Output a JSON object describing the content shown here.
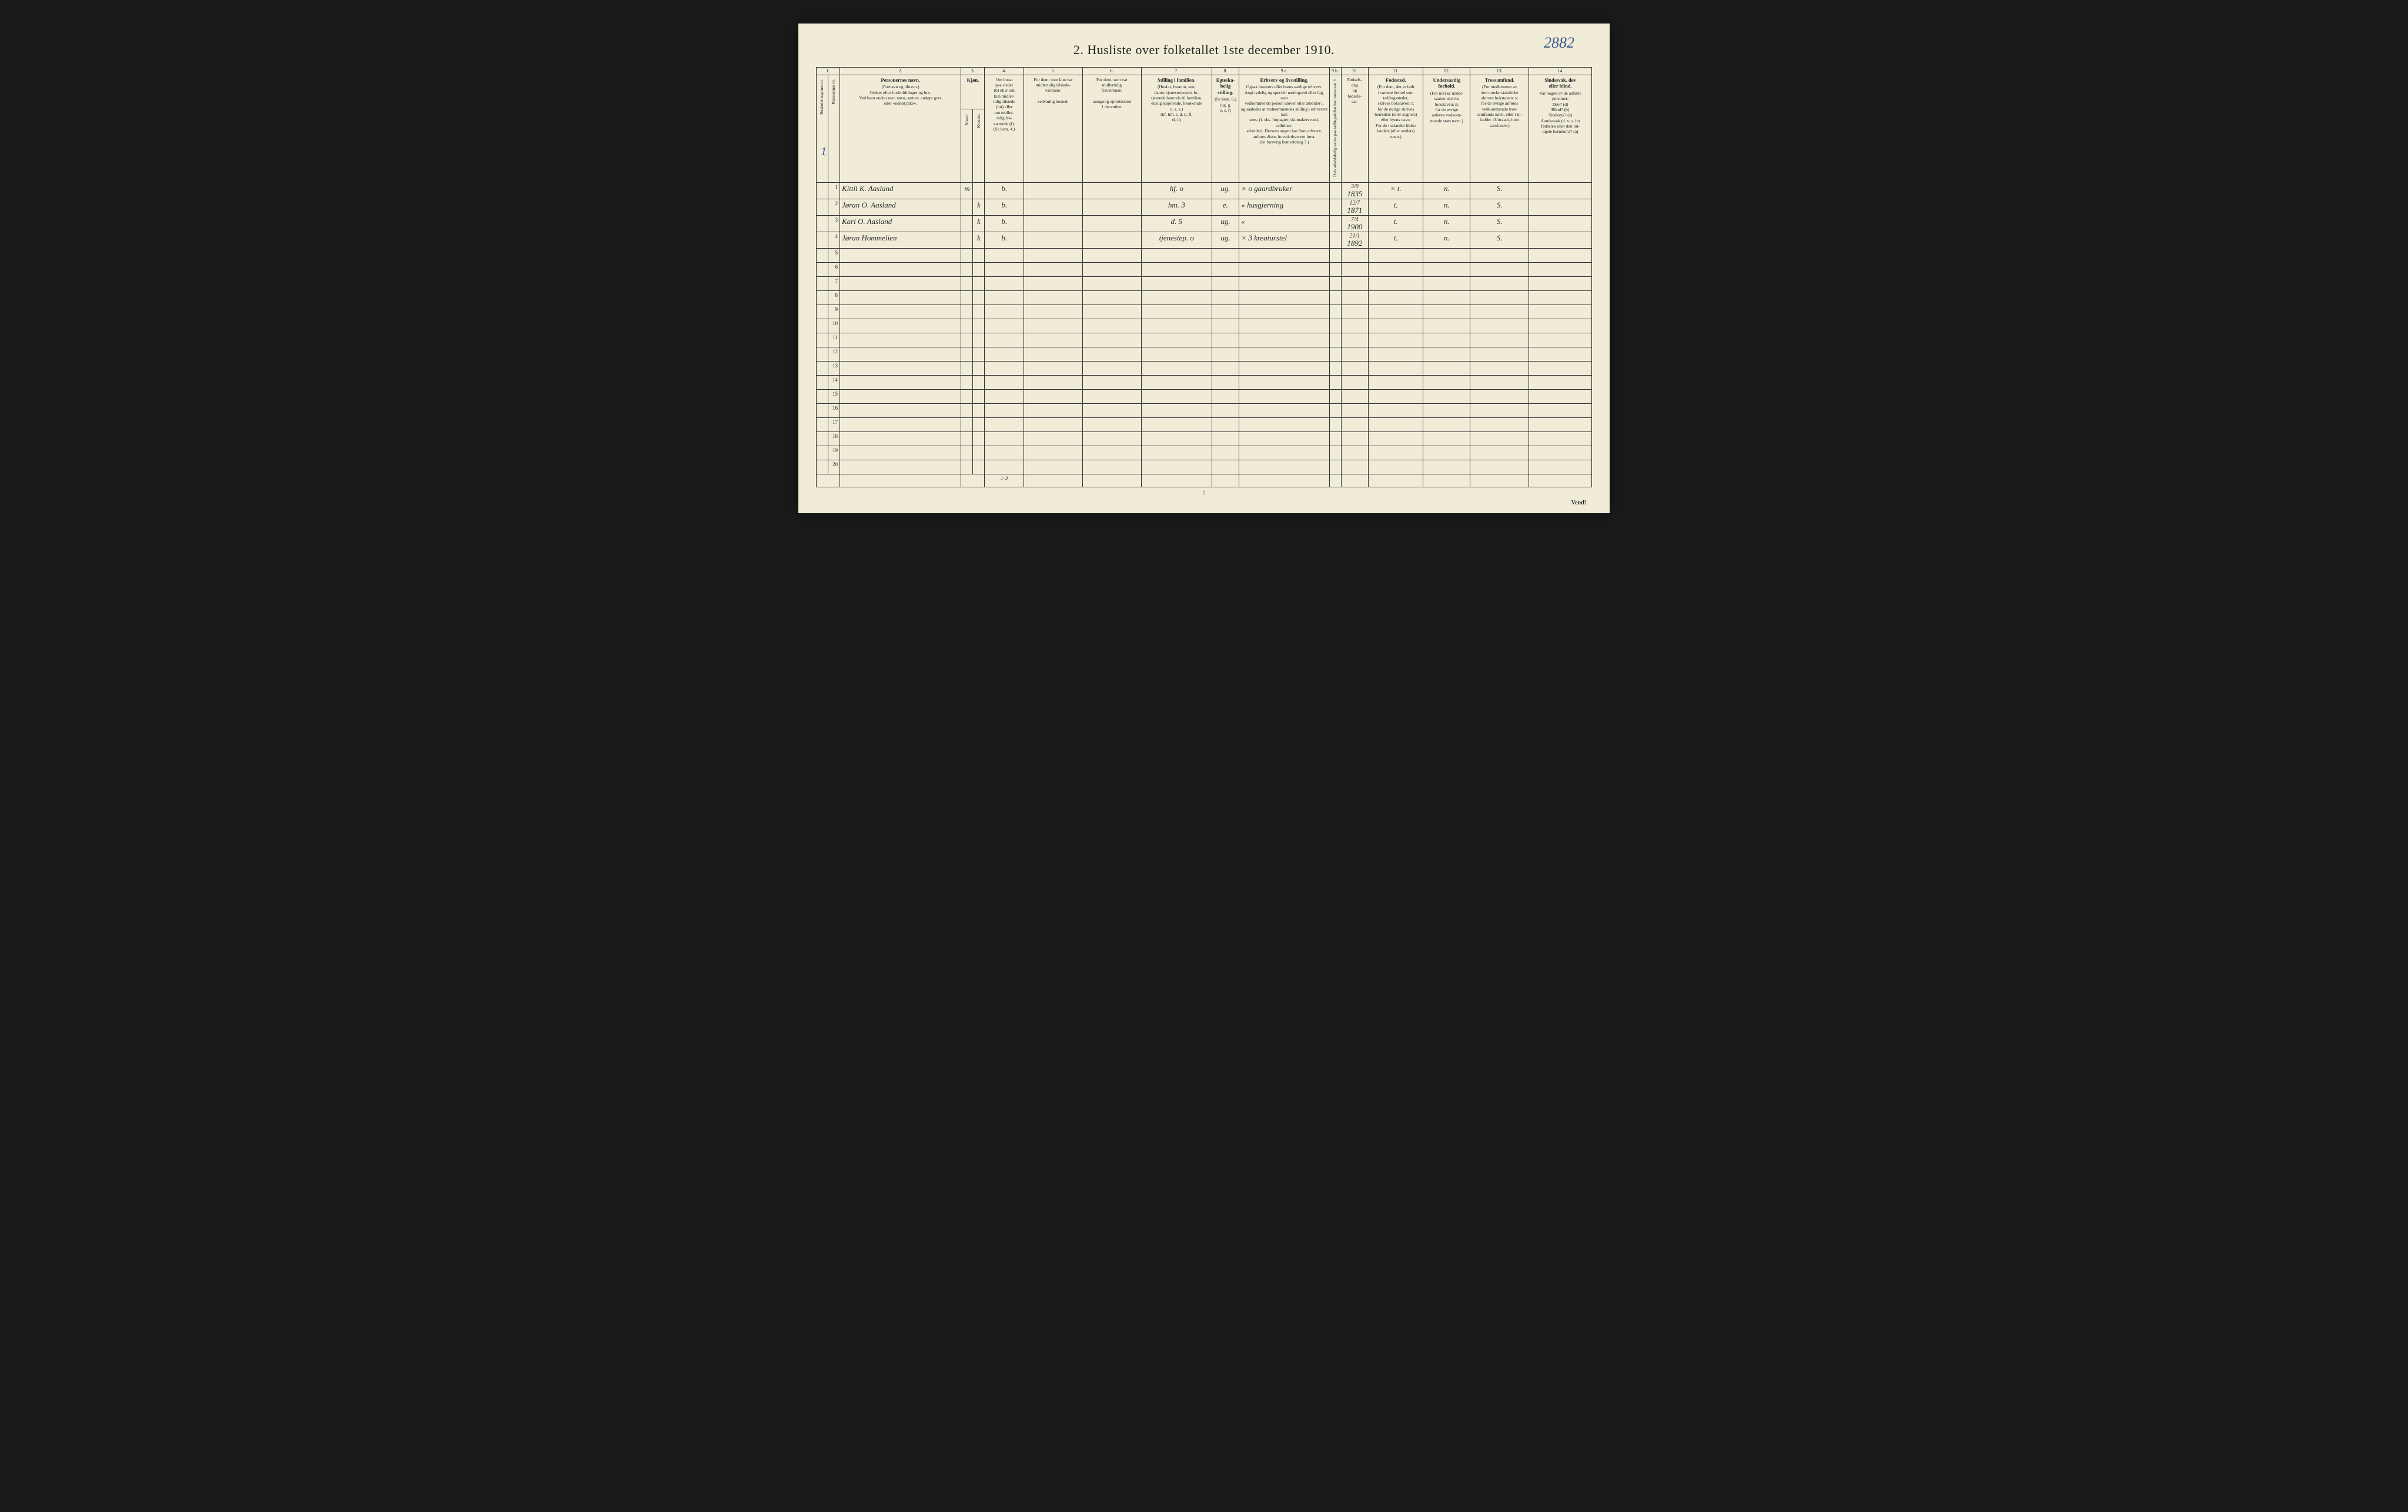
{
  "page_corner_number": "2882",
  "title": "2.  Husliste over folketallet 1ste december 1910.",
  "footer_page": "2",
  "vend_label": "Vend!",
  "side_tick": "1",
  "foot_note": "1–3",
  "col_nums": [
    "1.",
    "",
    "2.",
    "3.",
    "",
    "4.",
    "5.",
    "6.",
    "7.",
    "8.",
    "9 a.",
    "9 b.",
    "10.",
    "11.",
    "12.",
    "13.",
    "14."
  ],
  "headers": {
    "c1a": "Husholdningernes nr.",
    "c1b": "Personernes nr.",
    "c2_title": "Personernes navn.",
    "c2_sub": "(Fornavn og tilnavn.)\nOrdnet efter husholdninger og hus.\nVed barn endnu uten navn, sættes: «udøpt gut»\neller «udøpt pike».",
    "c3_title": "Kjøn.",
    "c3a": "Mænd.",
    "c3b": "Kvinder.",
    "c4": "Om bosat\npaa stedet\n(b) eller om\nkun midler-\ntidig tilstede\n(mt) eller\nom midler-\ntidig fra-\nværende (f).\n(Se bem. 4.)",
    "c5": "For dem, som kun var\nmidlertidig tilstede-\nværende:\n\nsedvanlig bosted.",
    "c6": "For dem, som var\nmidlertidig\nfraværende:\n\nantagelig opholdssted\n1 december.",
    "c7_title": "Stilling i familien.",
    "c7_sub": "(Husfar, husmor, søn,\ndatter, tjenestetyende, lo-\nsjerende hørende til familien,\nenslig losjerende, besøkende\no. s. v.)\n(hf, hm, s, d, tj, fl,\nel, b)",
    "c8_title": "Egteska-\nbelig\nstilling.",
    "c8_sub": "(Se bem. 6.)\n(ug, g,\ne, s, f)",
    "c9a_title": "Erhverv og livsstilling.",
    "c9a_sub": "Ogsaa husmors eller barns særlige erhverv.\nAngi tydelig og specielt næringsvei eller fag, som\nvedkommende person utøver eller arbeider i,\nog saaledes at vedkommendes stilling i erhvervet kan\nsees, (f. eks. forpagter, skomakersvend, cellulose-\narbeider). Dersom nogen har flere erhverv,\nanføres disse, hovederhvervet først.\n(Se forøvrig bemerkning 7.)",
    "c9b": "Hvis arbeidsledig sættes\npaa tællingstidlen\nher bokstaven: l",
    "c10": "Fødsels-\ndag\nog\nfødsels-\naar.",
    "c11_title": "Fødested.",
    "c11_sub": "(For dem, der er født\ni samme herred som\ntællingsstedet,\nskrives bokstaven: t;\nfor de øvrige skrives\nherredets (eller sognets)\neller byens navn.\nFor de i utlandet fødte:\nlandets (eller stedets)\nnavn.)",
    "c12_title": "Undersaatlig\nforhold.",
    "c12_sub": "(For norske under-\nsaatter skrives\nbokstaven: n;\nfor de øvrige\nanføres vedkom-\nmende stats navn.)",
    "c13_title": "Trossamfund.",
    "c13_sub": "(For medlemmer av\nden norske statskirke\nskrives bokstaven: s;\nfor de øvrige anføres\nvedkommende tros-\nsamfunds navn, eller i til-\nfælde: «Uttraadt, intet\nsamfund».)",
    "c14_title": "Sindssvak, døv\neller blind.",
    "c14_sub": "Var nogen av de anførte\npersoner:\nDøv?        (d)\nBlind?      (b)\nSindssyk?  (s)\nAandssvak (d. v. s. fra\nfødselen eller den tid-\nligste barndom)? (a)",
    "mk": "m. k."
  },
  "rows": [
    {
      "n": "1",
      "name": "Kittil K. Aasland",
      "sex_m": "m",
      "sex_k": "",
      "res": "b.",
      "c7": "hf.   o",
      "c8": "ug.",
      "c9a": "× o   gaardbruker",
      "c10a": "3/9",
      "c10b": "1835",
      "c11": "×  t.",
      "c12": "n.",
      "c13": "S."
    },
    {
      "n": "2",
      "name": "Jøran O. Aasland",
      "sex_m": "",
      "sex_k": "k",
      "res": "b.",
      "c7": "hm.  3",
      "c8": "e.",
      "c9a": "«   husgjerning",
      "c10a": "12/7",
      "c10b": "1871",
      "c11": "t.",
      "c12": "n.",
      "c13": "S."
    },
    {
      "n": "3",
      "name": "Kari O. Aasland",
      "sex_m": "",
      "sex_k": "k",
      "res": "b.",
      "c7": "d.   5",
      "c8": "ug.",
      "c9a": "«",
      "c10a": "7/4",
      "c10b": "1900",
      "c11": "t.",
      "c12": "n.",
      "c13": "S."
    },
    {
      "n": "4",
      "name": "Jøran Hommelien",
      "sex_m": "",
      "sex_k": "k",
      "res": "b.",
      "c7": "tjenestep.  o",
      "c8": "ug.",
      "c9a": "× 3   kreaturstel",
      "c10a": "21/1",
      "c10b": "1892",
      "c11": "t.",
      "c12": "n.",
      "c13": "S."
    }
  ],
  "blank_rows": [
    "5",
    "6",
    "7",
    "8",
    "9",
    "10",
    "11",
    "12",
    "13",
    "14",
    "15",
    "16",
    "17",
    "18",
    "19",
    "20"
  ]
}
